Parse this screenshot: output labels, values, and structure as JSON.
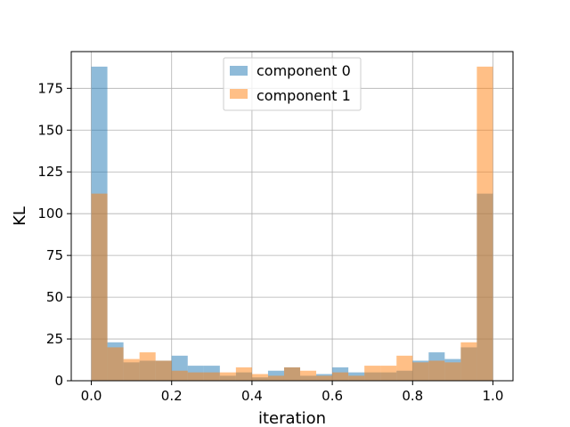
{
  "chart_data": {
    "type": "bar",
    "subtype": "overlaid-histogram",
    "title": "",
    "xlabel": "iteration",
    "ylabel": "KL",
    "xlim": [
      -0.05,
      1.05
    ],
    "ylim": [
      0,
      197
    ],
    "xticks": [
      0.0,
      0.2,
      0.4,
      0.6,
      0.8,
      1.0
    ],
    "xtick_labels": [
      "0.0",
      "0.2",
      "0.4",
      "0.6",
      "0.8",
      "1.0"
    ],
    "yticks": [
      0,
      25,
      50,
      75,
      100,
      125,
      150,
      175
    ],
    "ytick_labels": [
      "0",
      "25",
      "50",
      "75",
      "100",
      "125",
      "150",
      "175"
    ],
    "grid": true,
    "legend_position": "top-center",
    "bin_edges": [
      0.0,
      0.04,
      0.08,
      0.12,
      0.16,
      0.2,
      0.24,
      0.28,
      0.32,
      0.36,
      0.4,
      0.44,
      0.48,
      0.52,
      0.56,
      0.6,
      0.64,
      0.68,
      0.72,
      0.76,
      0.8,
      0.84,
      0.88,
      0.92,
      0.96,
      1.0
    ],
    "series": [
      {
        "name": "component 0",
        "color": "#1f77b4",
        "alpha": 0.5,
        "values": [
          188,
          23,
          11,
          12,
          12,
          15,
          9,
          9,
          3,
          5,
          2,
          6,
          8,
          3,
          4,
          8,
          5,
          5,
          5,
          6,
          12,
          17,
          13,
          20,
          112
        ]
      },
      {
        "name": "component 1",
        "color": "#ff7f0e",
        "alpha": 0.5,
        "values": [
          112,
          20,
          13,
          17,
          12,
          6,
          5,
          5,
          5,
          8,
          4,
          3,
          8,
          6,
          3,
          5,
          3,
          9,
          9,
          15,
          11,
          12,
          11,
          23,
          188
        ]
      }
    ]
  }
}
